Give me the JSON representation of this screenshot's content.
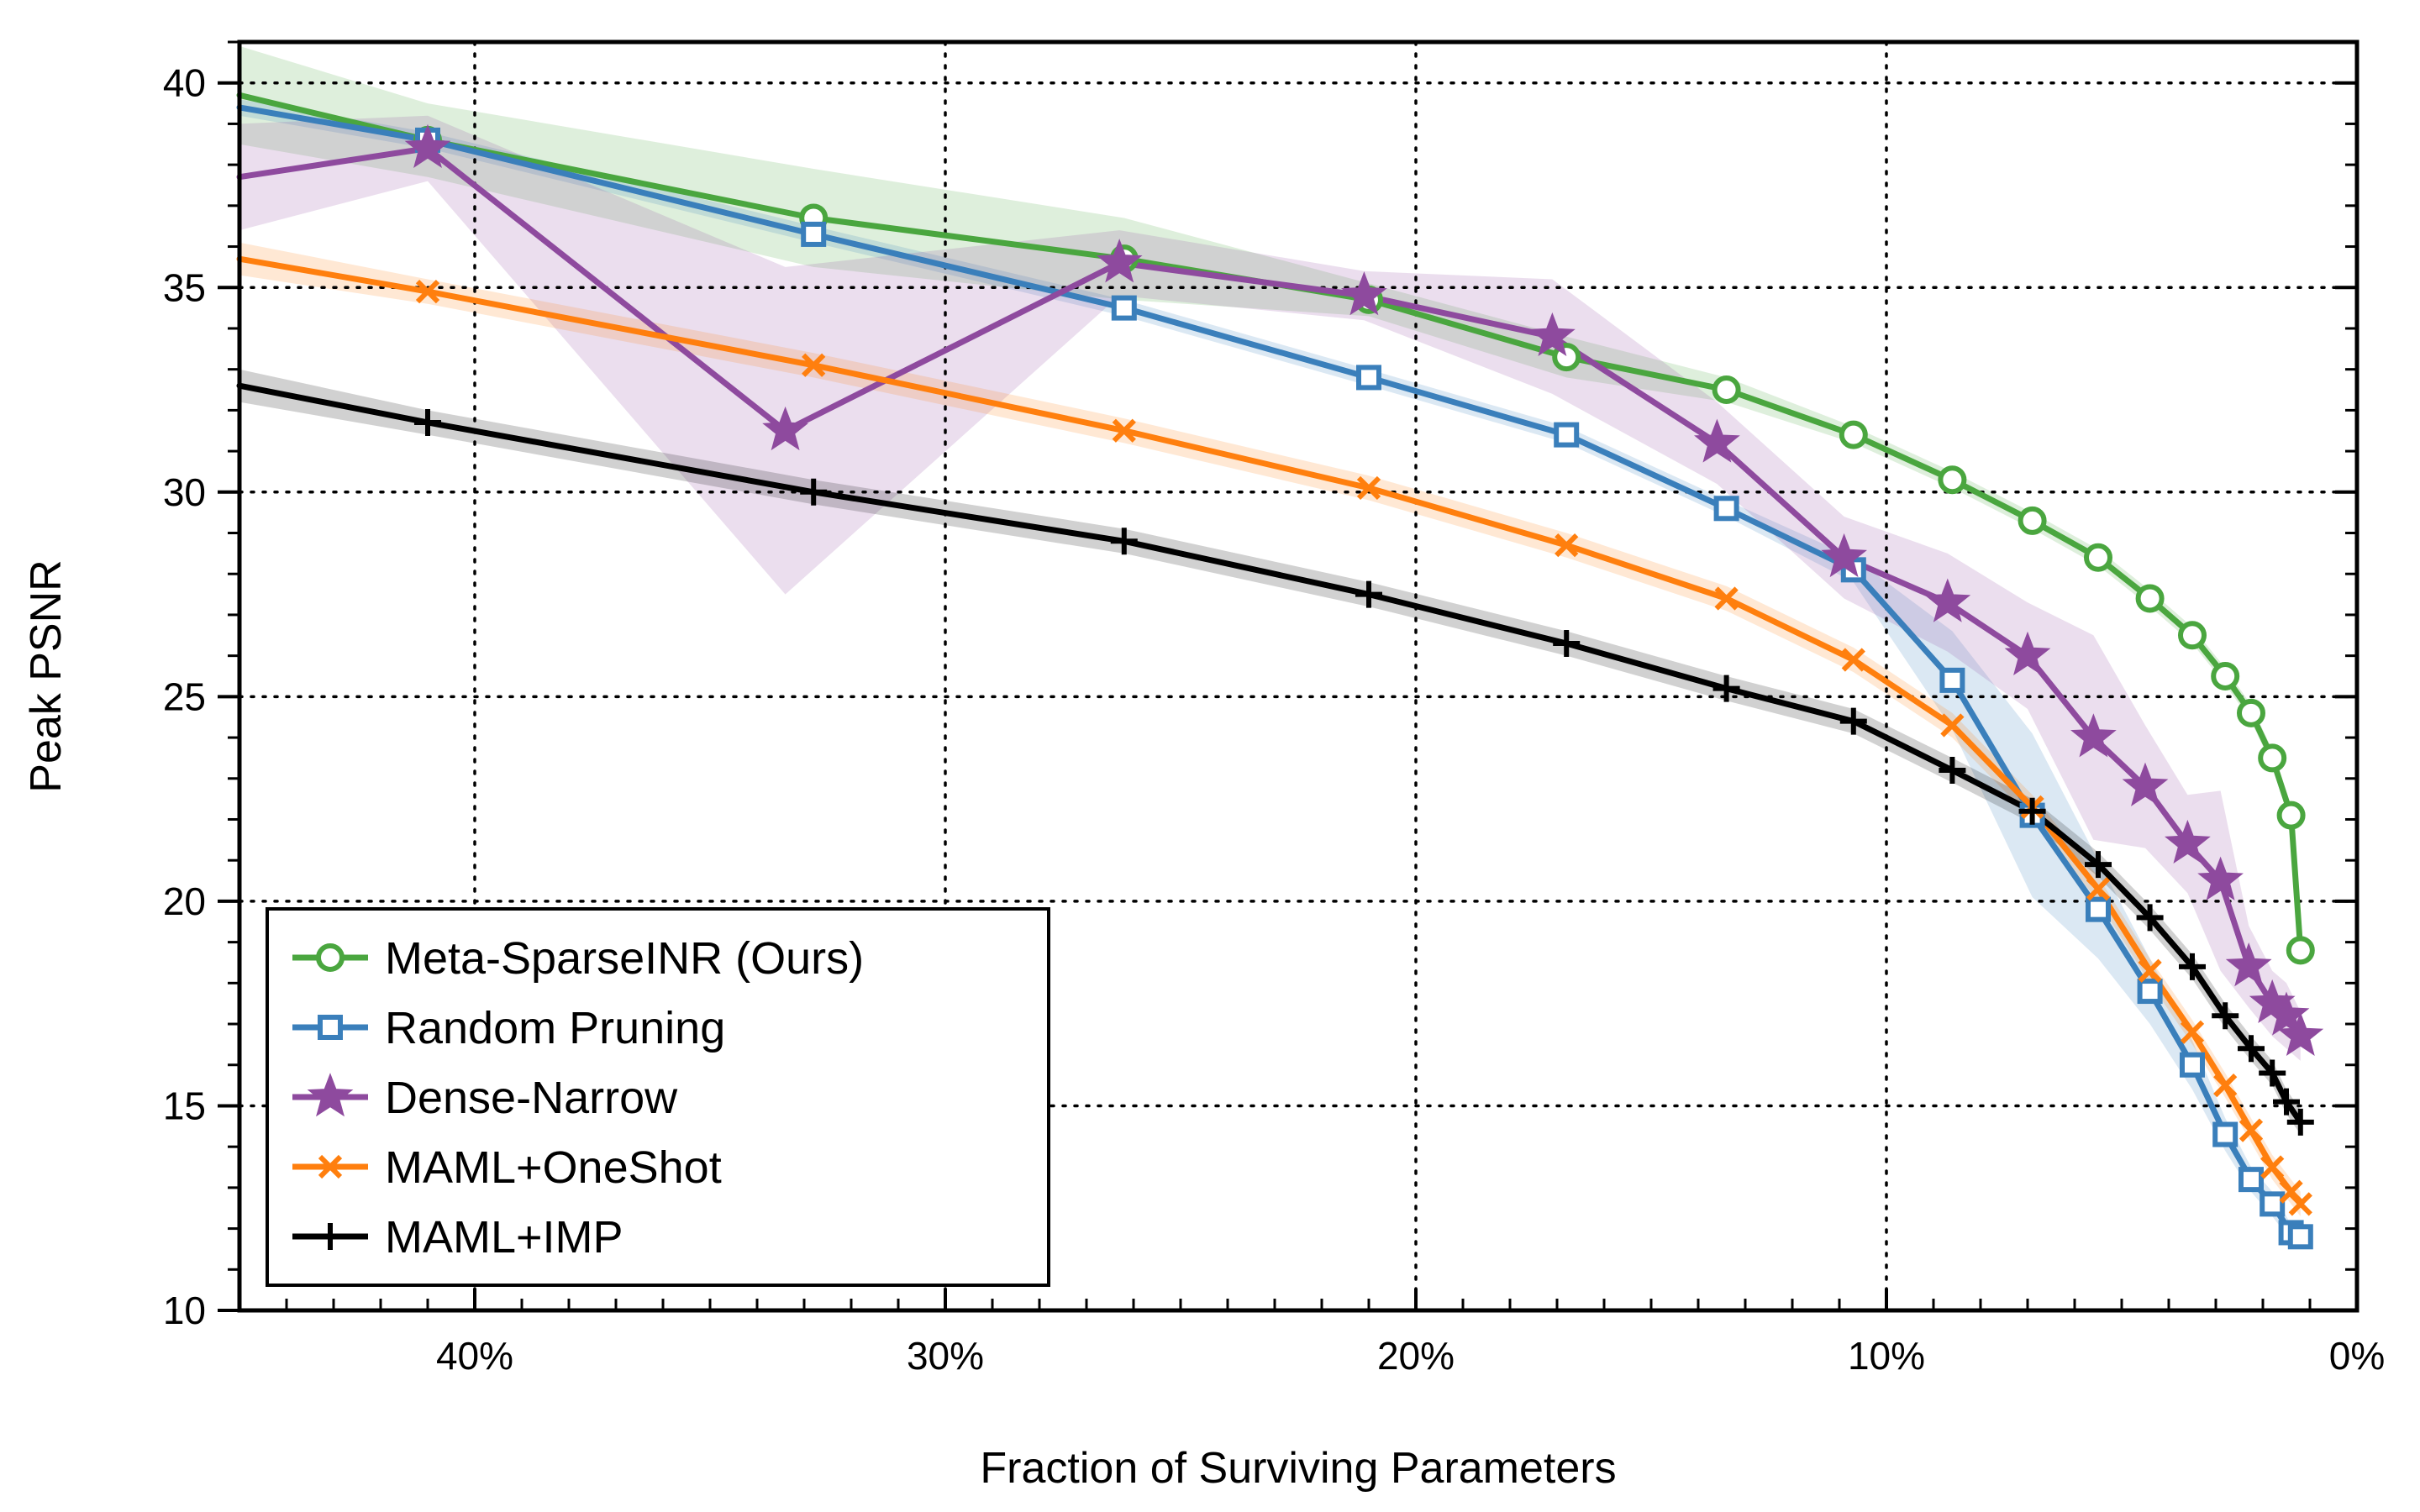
{
  "chart_data": {
    "type": "line",
    "title": "",
    "xlabel": "Fraction of Surviving Parameters",
    "ylabel": "Peak PSNR",
    "xlim": [
      45,
      0
    ],
    "ylim": [
      10,
      41
    ],
    "x_ticks": [
      40,
      30,
      20,
      10,
      0
    ],
    "x_tick_labels": [
      "40%",
      "30%",
      "20%",
      "10%",
      "0%"
    ],
    "y_ticks": [
      10,
      15,
      20,
      25,
      30,
      35,
      40
    ],
    "y_tick_labels": [
      "10",
      "15",
      "20",
      "25",
      "30",
      "35",
      "40"
    ],
    "grid": true,
    "legend_position": "lower-left",
    "series": [
      {
        "name": "Meta-SparseINR (Ours)",
        "color": "#4aa63f",
        "marker": "circle",
        "x": [
          45.0,
          41.0,
          32.8,
          26.2,
          21.0,
          16.8,
          13.4,
          10.7,
          8.6,
          6.9,
          5.5,
          4.4,
          3.5,
          2.8,
          2.25,
          1.8,
          1.4,
          1.2
        ],
        "y": [
          39.7,
          38.6,
          36.7,
          35.7,
          34.7,
          33.3,
          32.5,
          31.4,
          30.3,
          29.3,
          28.4,
          27.4,
          26.5,
          25.5,
          24.6,
          23.5,
          22.1,
          18.8
        ],
        "band": [
          1.2,
          0.9,
          1.2,
          1.0,
          0.4,
          0.5,
          0.3,
          0.2,
          0.2,
          0.2,
          0.2,
          0.2,
          0.2,
          0.2,
          0.2,
          0.2,
          0.2,
          0.2
        ]
      },
      {
        "name": "Random Pruning",
        "color": "#3a7fbb",
        "marker": "square",
        "x": [
          45.0,
          41.0,
          32.8,
          26.2,
          21.0,
          16.8,
          13.4,
          10.7,
          8.6,
          6.9,
          5.5,
          4.4,
          3.5,
          2.8,
          2.25,
          1.8,
          1.4,
          1.2
        ],
        "y": [
          39.4,
          38.6,
          36.3,
          34.5,
          32.8,
          31.4,
          29.6,
          28.1,
          25.4,
          22.1,
          19.8,
          17.8,
          16.0,
          14.3,
          13.2,
          12.6,
          11.9,
          11.8
        ],
        "band": [
          0.2,
          0.2,
          0.2,
          0.2,
          0.2,
          0.2,
          0.2,
          0.3,
          1.2,
          2.0,
          1.2,
          0.8,
          0.6,
          0.4,
          0.3,
          0.3,
          0.2,
          0.2
        ]
      },
      {
        "name": "Dense-Narrow",
        "color": "#8e4a9e",
        "marker": "star",
        "x": [
          45.0,
          41.0,
          33.4,
          26.3,
          21.1,
          17.1,
          13.6,
          10.9,
          8.7,
          7.0,
          5.6,
          4.5,
          3.6,
          2.9,
          2.3,
          1.8,
          1.5,
          1.2
        ],
        "y": [
          37.7,
          38.4,
          31.5,
          35.6,
          34.8,
          33.8,
          31.2,
          28.4,
          27.3,
          26.0,
          24.0,
          22.8,
          21.4,
          20.5,
          18.4,
          17.5,
          17.2,
          16.7
        ],
        "band": [
          1.3,
          0.8,
          4.0,
          0.8,
          0.6,
          1.4,
          1.0,
          1.0,
          1.2,
          1.3,
          2.5,
          1.5,
          1.2,
          2.2,
          1.0,
          0.8,
          0.8,
          0.6
        ]
      },
      {
        "name": "MAML+OneShot",
        "color": "#ff7f0e",
        "marker": "x",
        "x": [
          45.0,
          41.0,
          32.8,
          26.2,
          21.0,
          16.8,
          13.4,
          10.7,
          8.6,
          6.9,
          5.5,
          4.4,
          3.5,
          2.8,
          2.25,
          1.8,
          1.4,
          1.2
        ],
        "y": [
          35.7,
          34.9,
          33.1,
          31.5,
          30.1,
          28.7,
          27.4,
          25.9,
          24.3,
          22.3,
          20.3,
          18.3,
          16.8,
          15.5,
          14.4,
          13.5,
          12.9,
          12.6
        ],
        "band": [
          0.4,
          0.3,
          0.3,
          0.3,
          0.3,
          0.3,
          0.3,
          0.3,
          0.3,
          0.3,
          0.3,
          0.3,
          0.3,
          0.3,
          0.3,
          0.3,
          0.3,
          0.3
        ]
      },
      {
        "name": "MAML+IMP",
        "color": "#000000",
        "marker": "plus",
        "x": [
          45.0,
          41.0,
          32.8,
          26.2,
          21.0,
          16.8,
          13.4,
          10.7,
          8.6,
          6.9,
          5.5,
          4.4,
          3.5,
          2.8,
          2.25,
          1.8,
          1.5,
          1.2
        ],
        "y": [
          32.6,
          31.7,
          30.0,
          28.8,
          27.5,
          26.3,
          25.2,
          24.4,
          23.2,
          22.2,
          20.9,
          19.6,
          18.4,
          17.2,
          16.4,
          15.8,
          15.1,
          14.6
        ],
        "band": [
          0.4,
          0.3,
          0.3,
          0.3,
          0.3,
          0.3,
          0.3,
          0.3,
          0.3,
          0.3,
          0.3,
          0.3,
          0.3,
          0.3,
          0.3,
          0.3,
          0.3,
          0.3
        ]
      }
    ]
  }
}
